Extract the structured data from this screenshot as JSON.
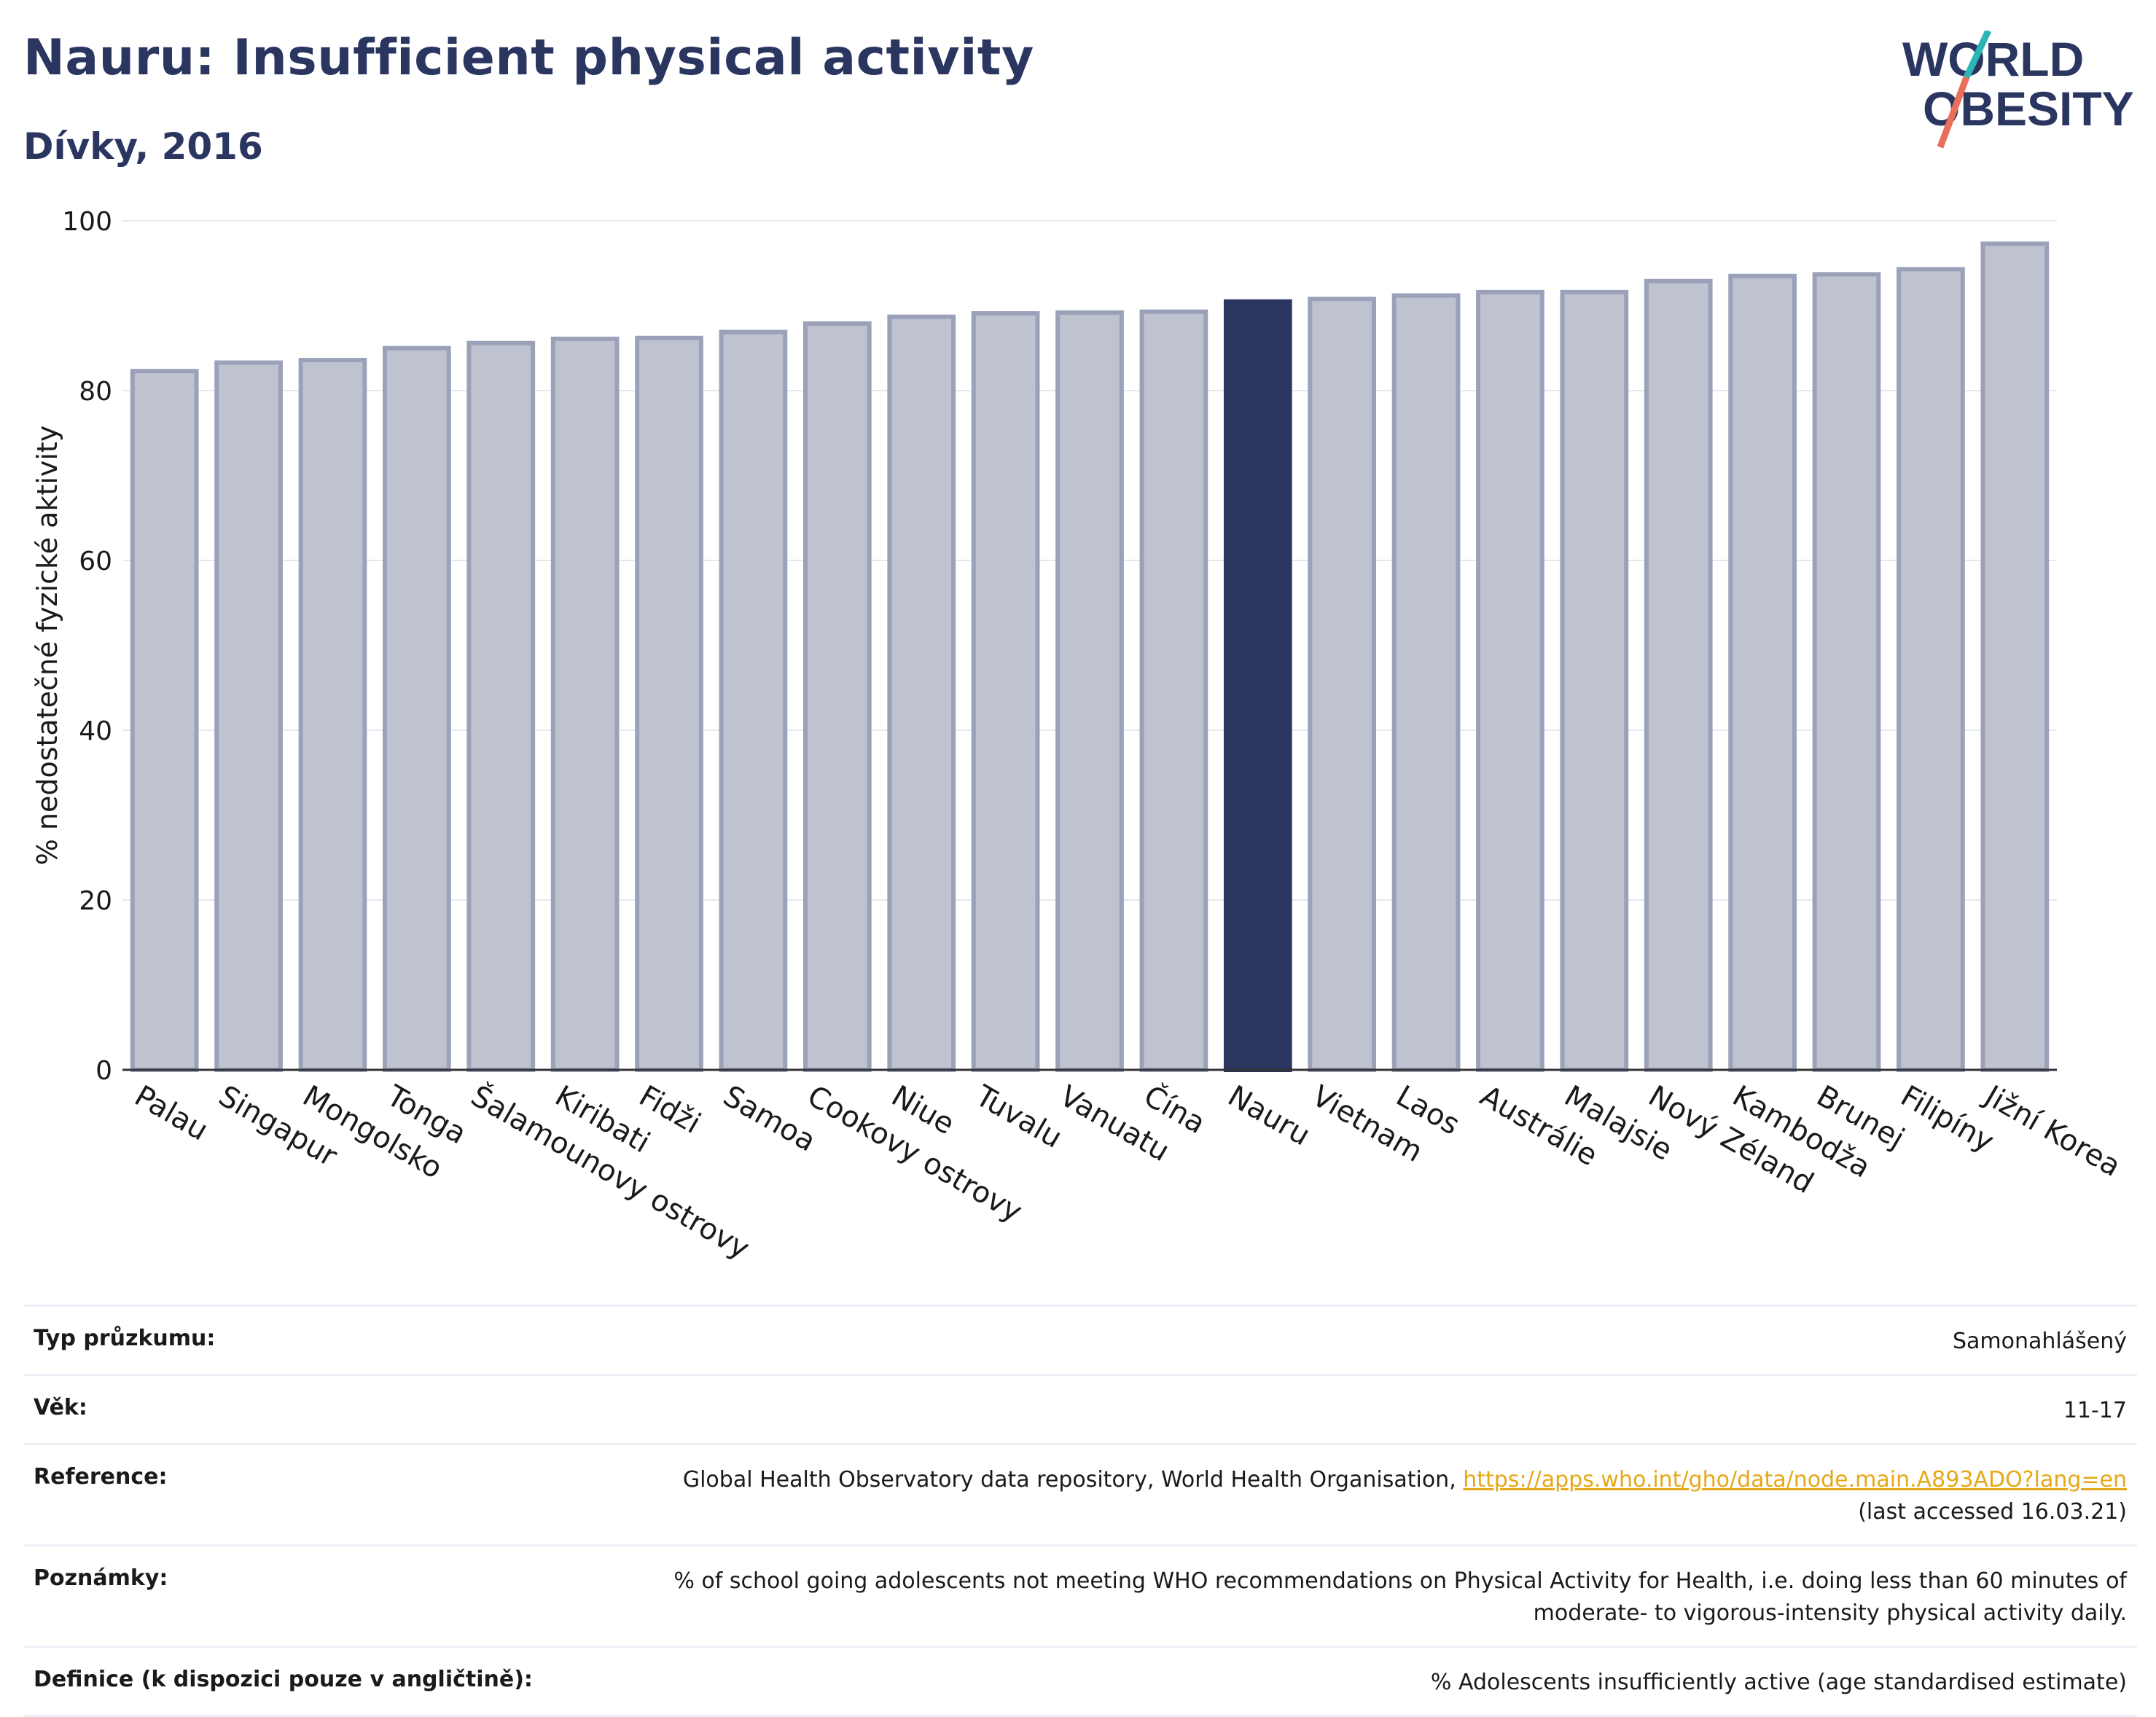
{
  "header": {
    "title": "Nauru: Insufficient physical activity",
    "subtitle": "Dívky, 2016",
    "logo_line1": "WORLD",
    "logo_line2": "OBESITY"
  },
  "colors": {
    "bar": "#bfc3cf",
    "bar_border": "#9aa1b8",
    "highlight": "#2a3560",
    "title": "#2a3560",
    "link": "#e6a817",
    "logo_slash_top": "#2bb5b3",
    "logo_slash_bottom": "#e8705a"
  },
  "chart_data": {
    "type": "bar",
    "title": "",
    "xlabel": "",
    "ylabel": "% nedostatečné fyzické aktivity",
    "ylim": [
      0,
      100
    ],
    "yticks": [
      0,
      20,
      40,
      60,
      80,
      100
    ],
    "grid": true,
    "highlight": "Nauru",
    "categories": [
      "Palau",
      "Singapur",
      "Mongolsko",
      "Tonga",
      "Šalamounovy ostrovy",
      "Kiribati",
      "Fidži",
      "Samoa",
      "Cookovy ostrovy",
      "Niue",
      "Tuvalu",
      "Vanuatu",
      "Čína",
      "Nauru",
      "Vietnam",
      "Laos",
      "Austrálie",
      "Malajsie",
      "Nový Zéland",
      "Kambodža",
      "Brunej",
      "Filipíny",
      "Jižní Korea"
    ],
    "values": [
      82.3,
      83.3,
      83.6,
      85.0,
      85.6,
      86.1,
      86.2,
      86.9,
      87.9,
      88.7,
      89.1,
      89.2,
      89.3,
      90.5,
      90.8,
      91.2,
      91.6,
      91.6,
      92.9,
      93.5,
      93.7,
      94.3,
      97.3
    ]
  },
  "info": {
    "survey_label": "Typ průzkumu:",
    "survey_value": "Samonahlášený",
    "age_label": "Věk:",
    "age_value": "11-17",
    "reference_label": "Reference:",
    "reference_text": "Global Health Observatory data repository, World Health Organisation, ",
    "reference_link": "https://apps.who.int/gho/data/node.main.A893ADO?lang=en",
    "reference_accessed": "(last accessed 16.03.21)",
    "notes_label": "Poznámky:",
    "notes_line1": "% of school going adolescents not meeting WHO recommendations on Physical Activity for Health, i.e. doing less than 60 minutes of",
    "notes_line2": "moderate- to vigorous-intensity physical activity daily.",
    "definition_label": "Definice (k dispozici pouze v angličtině):",
    "definition_value": "% Adolescents insufficiently active (age standardised estimate)"
  }
}
